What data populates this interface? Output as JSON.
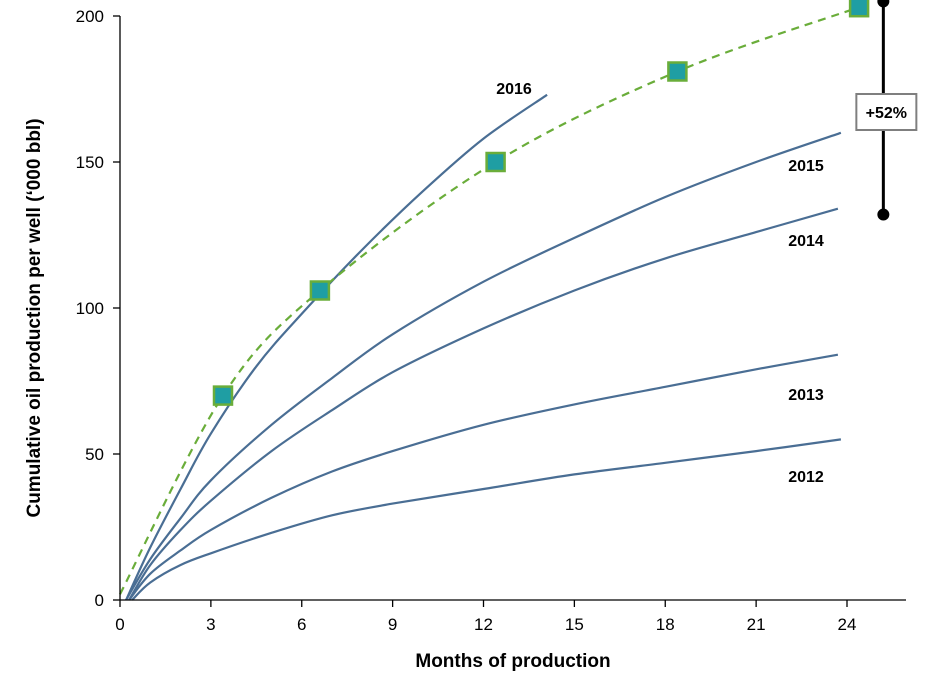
{
  "chart_data": {
    "type": "line",
    "title": "",
    "xlabel": "Months of production",
    "ylabel": "Cumulative oil  production per well (‘000 bbl)",
    "xlim": [
      0,
      27
    ],
    "ylim": [
      0,
      200
    ],
    "xticks": [
      0,
      3,
      6,
      9,
      12,
      15,
      18,
      21,
      24
    ],
    "yticks": [
      0,
      50,
      100,
      150,
      200
    ],
    "grid": false,
    "legend": "none",
    "series": [
      {
        "name": "2012",
        "color": "#4a6e94",
        "line_style": "solid",
        "points": [
          [
            0.4,
            0
          ],
          [
            1,
            6
          ],
          [
            2,
            12
          ],
          [
            3,
            16
          ],
          [
            5,
            23
          ],
          [
            7,
            29
          ],
          [
            9,
            33
          ],
          [
            12,
            38
          ],
          [
            15,
            43
          ],
          [
            18,
            47
          ],
          [
            21,
            51
          ],
          [
            23.8,
            55
          ]
        ]
      },
      {
        "name": "2013",
        "color": "#4a6e94",
        "line_style": "solid",
        "points": [
          [
            0.3,
            0
          ],
          [
            1,
            9
          ],
          [
            2,
            17
          ],
          [
            3,
            24
          ],
          [
            5,
            35
          ],
          [
            7,
            44
          ],
          [
            9,
            51
          ],
          [
            12,
            60
          ],
          [
            15,
            67
          ],
          [
            18,
            73
          ],
          [
            21,
            79
          ],
          [
            23.7,
            84
          ]
        ]
      },
      {
        "name": "2014",
        "color": "#4a6e94",
        "line_style": "solid",
        "points": [
          [
            0.3,
            0
          ],
          [
            1,
            12
          ],
          [
            2,
            24
          ],
          [
            3,
            34
          ],
          [
            5,
            51
          ],
          [
            7,
            65
          ],
          [
            9,
            78
          ],
          [
            12,
            93
          ],
          [
            15,
            106
          ],
          [
            18,
            117
          ],
          [
            21,
            126
          ],
          [
            23.7,
            134
          ]
        ]
      },
      {
        "name": "2015",
        "color": "#4a6e94",
        "line_style": "solid",
        "points": [
          [
            0.2,
            0
          ],
          [
            1,
            14
          ],
          [
            2,
            28
          ],
          [
            3,
            41
          ],
          [
            5,
            60
          ],
          [
            7,
            76
          ],
          [
            9,
            91
          ],
          [
            12,
            109
          ],
          [
            15,
            124
          ],
          [
            18,
            138
          ],
          [
            21,
            150
          ],
          [
            23.8,
            160
          ]
        ]
      },
      {
        "name": "2016",
        "color": "#4a6e94",
        "line_style": "solid",
        "points": [
          [
            0.2,
            0
          ],
          [
            1,
            18
          ],
          [
            2,
            38
          ],
          [
            3,
            57
          ],
          [
            4.5,
            80
          ],
          [
            6,
            98
          ],
          [
            8,
            120
          ],
          [
            10,
            140
          ],
          [
            12,
            158
          ],
          [
            14.1,
            173
          ]
        ]
      },
      {
        "name": "",
        "color": "#6aad3a",
        "line_style": "dashed",
        "points": [
          [
            0,
            2
          ],
          [
            3.4,
            70
          ],
          [
            6.6,
            106
          ],
          [
            12.4,
            150
          ],
          [
            18.4,
            181
          ],
          [
            24.4,
            203
          ]
        ],
        "markers": [
          [
            3.4,
            70
          ],
          [
            6.6,
            106
          ],
          [
            12.4,
            150
          ],
          [
            18.4,
            181
          ],
          [
            24.4,
            203
          ]
        ],
        "marker_color": "#1f9ea3",
        "marker_edge_color": "#6aad3a"
      }
    ],
    "annotations": [
      {
        "text": "+52%",
        "x": 25.2,
        "y_range": [
          132,
          205
        ]
      }
    ]
  }
}
